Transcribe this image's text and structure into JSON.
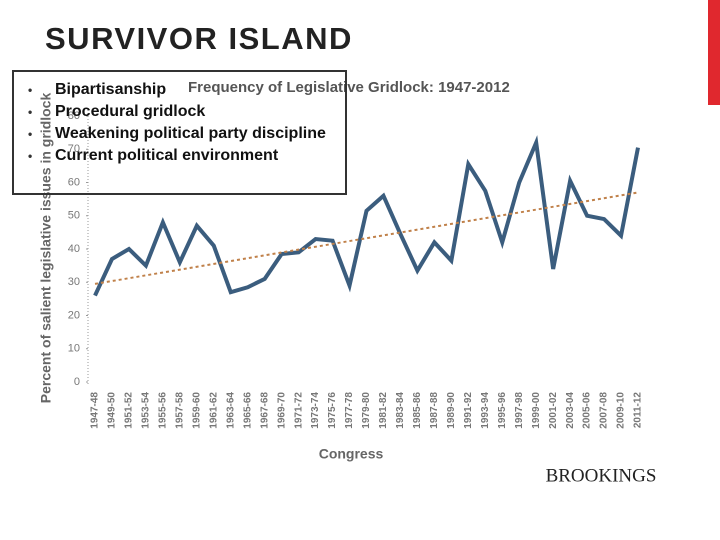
{
  "slide": {
    "title": "SURVIVOR ISLAND",
    "bullets": [
      "Bipartisanship",
      "Procedural gridlock",
      "Weakening political party discipline",
      "Current political environment"
    ],
    "logo": "BROOKINGS"
  },
  "chart_data": {
    "type": "line",
    "title": "Frequency of Legislative Gridlock: 1947-2012",
    "xlabel": "Congress",
    "ylabel": "Percent of salient legislative issues in gridlock",
    "categories": [
      "1947-48",
      "1949-50",
      "1951-52",
      "1953-54",
      "1955-56",
      "1957-58",
      "1959-60",
      "1961-62",
      "1963-64",
      "1965-66",
      "1967-68",
      "1969-70",
      "1971-72",
      "1973-74",
      "1975-76",
      "1977-78",
      "1979-80",
      "1981-82",
      "1983-84",
      "1985-86",
      "1987-88",
      "1989-90",
      "1991-92",
      "1993-94",
      "1995-96",
      "1997-98",
      "1999-00",
      "2001-02",
      "2003-04",
      "2005-06",
      "2007-08",
      "2009-10",
      "2011-12"
    ],
    "series": [
      {
        "color": "#3b5d7e",
        "values": [
          26,
          37,
          40,
          35,
          48,
          36,
          47,
          41,
          27,
          28.5,
          31,
          38.5,
          39,
          43,
          42.5,
          29,
          51.5,
          56,
          44.5,
          33.5,
          42,
          36.5,
          65.5,
          57.5,
          42,
          60,
          72,
          34,
          60.5,
          50,
          49,
          44,
          70.5
        ]
      },
      {
        "color": "#c0814a",
        "dashed": true,
        "values": [
          29.5,
          null,
          null,
          null,
          null,
          null,
          null,
          null,
          null,
          null,
          null,
          null,
          null,
          null,
          null,
          null,
          null,
          null,
          null,
          null,
          null,
          null,
          null,
          null,
          null,
          null,
          null,
          null,
          null,
          null,
          null,
          null,
          57
        ]
      }
    ],
    "ylim": [
      0,
      80
    ],
    "yticks": [
      0,
      10,
      20,
      30,
      40,
      50,
      60,
      70,
      80
    ],
    "grid": false
  }
}
